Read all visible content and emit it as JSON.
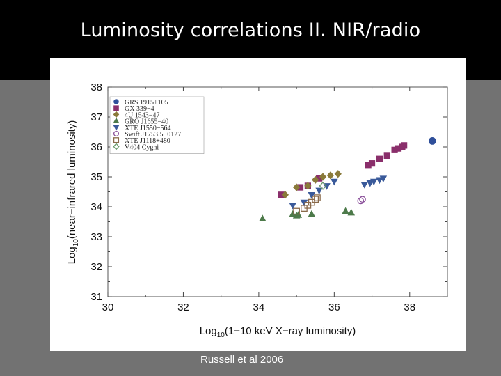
{
  "slide": {
    "title": "Luminosity correlations II.  NIR/radio",
    "credit": "Russell et al 2006"
  },
  "chart_data": {
    "type": "scatter",
    "xlabel_prefix": "Log",
    "xlabel_sub": "10",
    "xlabel_rest": "(1−10 keV X−ray luminosity)",
    "ylabel_prefix": "Log",
    "ylabel_sub": "10",
    "ylabel_rest": "(near−infrared luminosity)",
    "xlim": [
      30,
      39
    ],
    "ylim": [
      31,
      38
    ],
    "xticks": [
      30,
      32,
      34,
      36,
      38
    ],
    "yticks": [
      31,
      32,
      33,
      34,
      35,
      36,
      37,
      38
    ],
    "legend_position": "top-left",
    "series": [
      {
        "name": "GRS 1915+105",
        "marker": "circle",
        "color": "#2f4f9a",
        "fill": true,
        "points": [
          [
            38.6,
            36.2
          ]
        ]
      },
      {
        "name": "GX 339−4",
        "marker": "square",
        "color": "#8a2f6b",
        "fill": true,
        "points": [
          [
            34.6,
            34.4
          ],
          [
            35.1,
            34.65
          ],
          [
            35.3,
            34.7
          ],
          [
            35.6,
            34.95
          ],
          [
            36.9,
            35.4
          ],
          [
            37.0,
            35.45
          ],
          [
            37.2,
            35.6
          ],
          [
            37.4,
            35.7
          ],
          [
            37.6,
            35.9
          ],
          [
            37.7,
            35.95
          ],
          [
            37.8,
            36.0
          ],
          [
            37.85,
            36.05
          ]
        ]
      },
      {
        "name": "4U 1543−47",
        "marker": "diamond",
        "color": "#8a7a3a",
        "fill": true,
        "points": [
          [
            34.7,
            34.4
          ],
          [
            35.0,
            34.65
          ],
          [
            35.3,
            34.7
          ],
          [
            35.5,
            34.9
          ],
          [
            35.7,
            35.0
          ],
          [
            35.9,
            35.05
          ],
          [
            36.1,
            35.1
          ]
        ]
      },
      {
        "name": "GRO J1655−40",
        "marker": "triangle-up",
        "color": "#4d7a4a",
        "fill": true,
        "points": [
          [
            34.1,
            33.6
          ],
          [
            34.9,
            33.75
          ],
          [
            35.0,
            33.7
          ],
          [
            35.05,
            33.72
          ],
          [
            35.4,
            33.75
          ],
          [
            36.3,
            33.85
          ],
          [
            36.45,
            33.8
          ]
        ]
      },
      {
        "name": "XTE J1550−564",
        "marker": "triangle-down",
        "color": "#3a5a9a",
        "fill": true,
        "points": [
          [
            34.9,
            34.05
          ],
          [
            35.2,
            34.15
          ],
          [
            35.4,
            34.4
          ],
          [
            35.6,
            34.55
          ],
          [
            35.8,
            34.7
          ],
          [
            36.0,
            34.85
          ],
          [
            36.8,
            34.75
          ],
          [
            36.95,
            34.8
          ],
          [
            37.05,
            34.85
          ],
          [
            37.2,
            34.9
          ],
          [
            37.3,
            34.95
          ]
        ]
      },
      {
        "name": "Swift J1753.5−0127",
        "marker": "circle",
        "color": "#8a4f9a",
        "fill": false,
        "points": [
          [
            36.7,
            34.2
          ],
          [
            36.75,
            34.25
          ]
        ]
      },
      {
        "name": "XTE J1118+480",
        "marker": "square",
        "color": "#8a6a4a",
        "fill": false,
        "points": [
          [
            35.0,
            33.85
          ],
          [
            35.2,
            33.95
          ],
          [
            35.3,
            34.05
          ],
          [
            35.4,
            34.15
          ],
          [
            35.5,
            34.25
          ],
          [
            35.55,
            34.3
          ]
        ]
      },
      {
        "name": "V404 Cygni",
        "marker": "diamond",
        "color": "#6a9a6a",
        "fill": false,
        "points": [
          [
            35.7,
            34.7
          ]
        ]
      }
    ]
  }
}
